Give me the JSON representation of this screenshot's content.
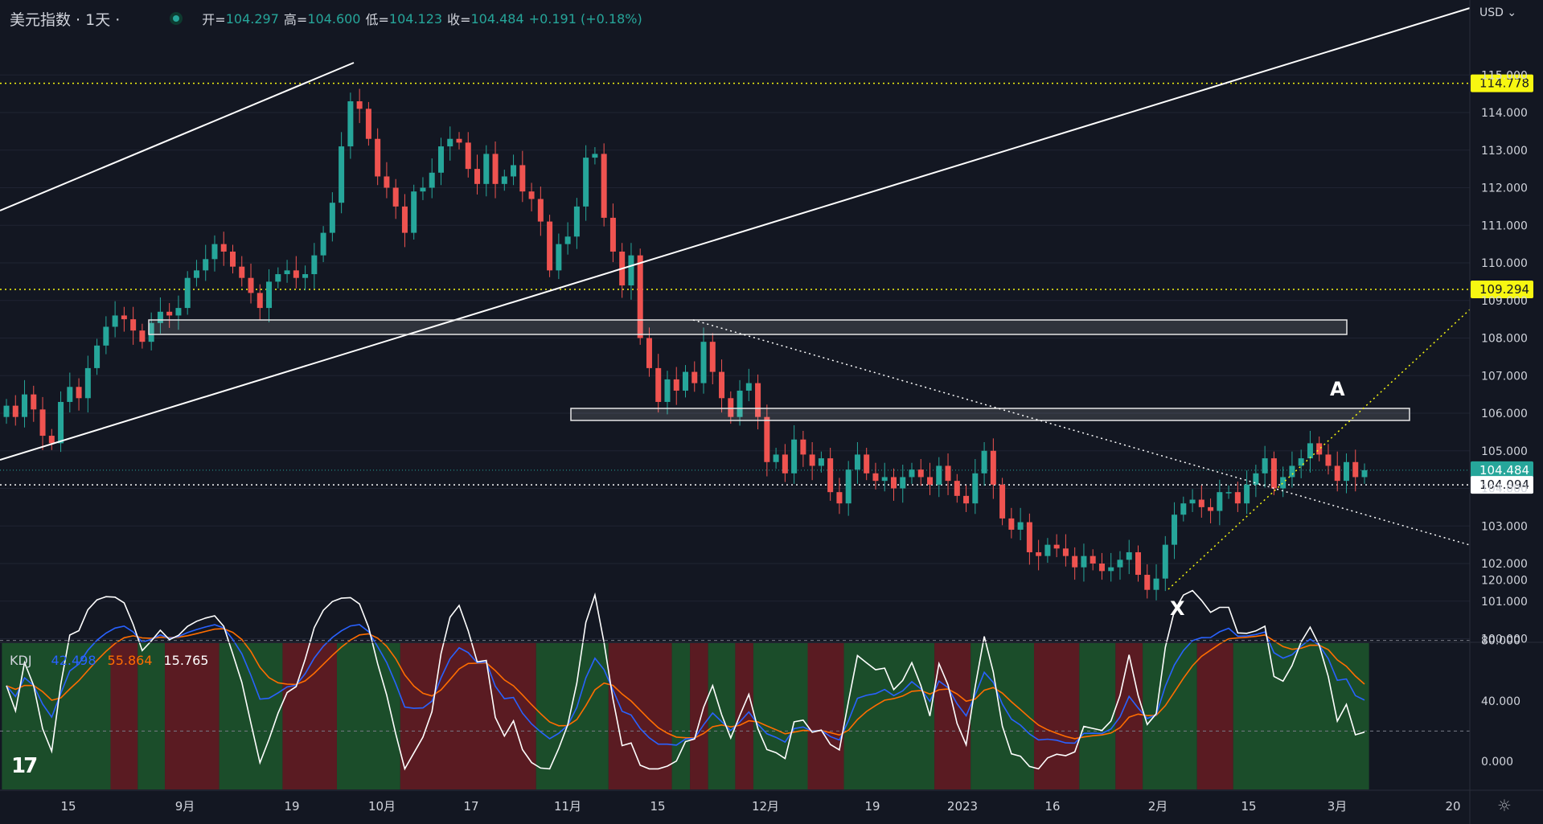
{
  "header": {
    "title": "美元指数 · 1天 ·",
    "open_label": "开=",
    "open": "104.297",
    "high_label": "高=",
    "high": "104.600",
    "low_label": "低=",
    "low": "104.123",
    "close_label": "收=",
    "close": "104.484",
    "change": "+0.191 (+0.18%)"
  },
  "currency": "USD",
  "price_axis": {
    "labels": [
      "115.000",
      "114.000",
      "113.000",
      "112.000",
      "111.000",
      "110.000",
      "109.000",
      "108.000",
      "107.000",
      "106.000",
      "105.000",
      "104.000",
      "103.000",
      "102.000",
      "101.000",
      "100.000"
    ]
  },
  "price_tags": [
    {
      "text": "114.778",
      "price": 114.778,
      "style": "yellow"
    },
    {
      "text": "109.294",
      "price": 109.294,
      "style": "yellow"
    },
    {
      "text": "104.484",
      "sub": "11:01:57",
      "price": 104.484,
      "style": "green"
    },
    {
      "text": "104.094",
      "price": 104.094,
      "style": "white"
    }
  ],
  "kdj": {
    "label": "KDJ",
    "k": "42.498",
    "d": "55.864",
    "j": "15.765",
    "axis_labels": [
      "120.000",
      "80.000",
      "40.000",
      "0.000"
    ],
    "colors": {
      "k": "#2962ff",
      "d": "#ff6d00",
      "j": "#ffffff"
    }
  },
  "time_axis": {
    "labels": [
      "15",
      "9月",
      "19",
      "10月",
      "17",
      "11月",
      "15",
      "12月",
      "19",
      "2023",
      "16",
      "2月",
      "15",
      "3月",
      "20"
    ]
  },
  "annotations": {
    "a": "A",
    "x": "X"
  },
  "colors": {
    "up": "#26a69a",
    "down": "#ef5350",
    "background": "#131722",
    "level": "#f7f711",
    "zone_green": "#1b4d2a",
    "zone_red": "#5a1b22"
  },
  "chart_data": {
    "type": "candlestick",
    "title": "美元指数 · 1天",
    "ylim": [
      99.5,
      115.8
    ],
    "last": {
      "open": 104.297,
      "high": 104.6,
      "low": 104.123,
      "close": 104.484
    },
    "closes": [
      106.2,
      105.9,
      106.5,
      106.1,
      105.4,
      105.2,
      106.3,
      106.7,
      106.4,
      107.2,
      107.8,
      108.3,
      108.6,
      108.5,
      108.2,
      107.9,
      108.4,
      108.7,
      108.6,
      108.8,
      109.6,
      109.8,
      110.1,
      110.5,
      110.3,
      109.9,
      109.6,
      109.2,
      108.8,
      109.5,
      109.7,
      109.8,
      109.6,
      109.7,
      110.2,
      110.8,
      111.6,
      113.1,
      114.3,
      114.1,
      113.3,
      112.3,
      112.0,
      111.5,
      110.8,
      111.9,
      112.0,
      112.4,
      113.1,
      113.3,
      113.2,
      112.5,
      112.1,
      112.9,
      112.1,
      112.3,
      112.6,
      111.9,
      111.7,
      111.1,
      109.8,
      110.5,
      110.7,
      111.5,
      112.8,
      112.9,
      111.2,
      110.3,
      109.4,
      110.2,
      108.0,
      107.2,
      106.3,
      106.9,
      106.6,
      107.1,
      106.8,
      107.9,
      107.1,
      106.4,
      105.9,
      106.6,
      106.8,
      105.9,
      104.7,
      104.9,
      104.4,
      105.3,
      104.9,
      104.6,
      104.8,
      103.9,
      103.6,
      104.5,
      104.9,
      104.4,
      104.2,
      104.3,
      104.0,
      104.3,
      104.5,
      104.3,
      104.1,
      104.6,
      104.2,
      103.8,
      103.6,
      104.4,
      105.0,
      104.1,
      103.2,
      102.9,
      103.1,
      102.3,
      102.2,
      102.5,
      102.4,
      102.2,
      101.9,
      102.2,
      102.0,
      101.8,
      101.9,
      102.1,
      102.3,
      101.7,
      101.3,
      101.6,
      102.5,
      103.3,
      103.6,
      103.7,
      103.5,
      103.4,
      103.9,
      103.9,
      103.6,
      104.1,
      104.4,
      104.8,
      104.0,
      104.3,
      104.6,
      104.8,
      105.2,
      104.9,
      104.6,
      104.2,
      104.7,
      104.3,
      104.484
    ]
  }
}
